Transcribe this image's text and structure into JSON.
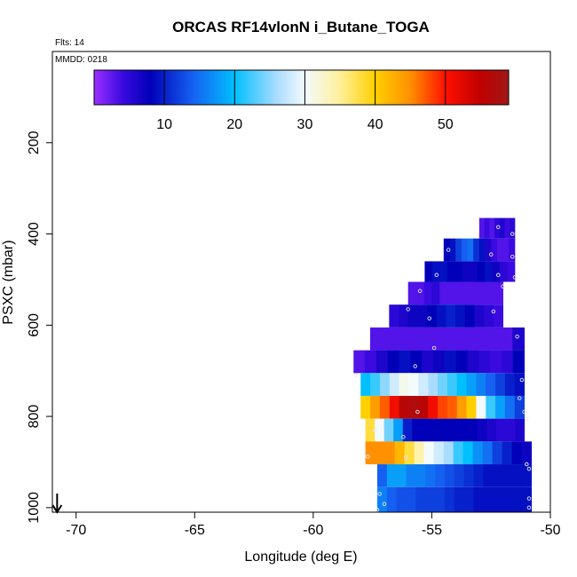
{
  "chart_data": {
    "type": "heatmap",
    "title": "ORCAS RF14vlonN i_Butane_TOGA",
    "flights_label": "Flts: 14",
    "date_label": "MMDD: 0218",
    "xlabel": "Longitude (deg E)",
    "ylabel": "PSXC (mbar)",
    "xlim": [
      -71,
      -50
    ],
    "ylim": [
      1010,
      0
    ],
    "x_ticks": [
      -70,
      -65,
      -60,
      -55,
      -50
    ],
    "y_ticks": [
      200,
      400,
      600,
      800,
      1000
    ],
    "colorbar": {
      "min": 0,
      "max": 59,
      "ticks": [
        10,
        20,
        30,
        40,
        50
      ],
      "stops": [
        {
          "v": 0,
          "c": "#9b30ff"
        },
        {
          "v": 4,
          "c": "#3a0ae0"
        },
        {
          "v": 8,
          "c": "#0000b8"
        },
        {
          "v": 14,
          "c": "#1560f0"
        },
        {
          "v": 20,
          "c": "#00bfff"
        },
        {
          "v": 26,
          "c": "#aadcff"
        },
        {
          "v": 30,
          "c": "#f3fbff"
        },
        {
          "v": 35,
          "c": "#fff09a"
        },
        {
          "v": 40,
          "c": "#ffd000"
        },
        {
          "v": 45,
          "c": "#ff9000"
        },
        {
          "v": 50,
          "c": "#ff1000"
        },
        {
          "v": 55,
          "c": "#c00000"
        },
        {
          "v": 59,
          "c": "#a01818"
        }
      ]
    },
    "rows": [
      {
        "p_top": 365,
        "p_bot": 410,
        "lon_start": -53.0,
        "lon_end": -51.5,
        "values": [
          3,
          4,
          3,
          5,
          6,
          4,
          5
        ]
      },
      {
        "p_top": 410,
        "p_bot": 460,
        "lon_start": -54.5,
        "lon_end": -51.5,
        "values": [
          8,
          9,
          12,
          14,
          15,
          11,
          9,
          6,
          4,
          3,
          3,
          4
        ]
      },
      {
        "p_top": 460,
        "p_bot": 505,
        "lon_start": -55.3,
        "lon_end": -51.5,
        "values": [
          8,
          9,
          9,
          8,
          8,
          7,
          7,
          8,
          9,
          7,
          5,
          4
        ]
      },
      {
        "p_top": 505,
        "p_bot": 555,
        "lon_start": -56.0,
        "lon_end": -52.0,
        "values": [
          3,
          3,
          4,
          5,
          3,
          3,
          3,
          3,
          3,
          3,
          3,
          3
        ]
      },
      {
        "p_top": 555,
        "p_bot": 605,
        "lon_start": -56.8,
        "lon_end": -52.0,
        "values": [
          5,
          6,
          7,
          7,
          8,
          9,
          10,
          9,
          8,
          6,
          5,
          4
        ]
      },
      {
        "p_top": 605,
        "p_bot": 655,
        "lon_start": -57.6,
        "lon_end": -51.1,
        "values": [
          3,
          3,
          3,
          3,
          3,
          3,
          3,
          3,
          3,
          3,
          3,
          3,
          6
        ]
      },
      {
        "p_top": 655,
        "p_bot": 705,
        "lon_start": -58.3,
        "lon_end": -51.1,
        "values": [
          3,
          4,
          6,
          8,
          9,
          8,
          6,
          7,
          9,
          8,
          6,
          5,
          4,
          5,
          8
        ]
      },
      {
        "p_top": 705,
        "p_bot": 755,
        "lon_start": -58.0,
        "lon_end": -51.1,
        "values": [
          20,
          22,
          25,
          28,
          31,
          30,
          28,
          26,
          24,
          22,
          20,
          18,
          16,
          14,
          12,
          10,
          9
        ]
      },
      {
        "p_top": 755,
        "p_bot": 805,
        "lon_start": -58.0,
        "lon_end": -51.1,
        "values": [
          40,
          44,
          47,
          51,
          56,
          57,
          56,
          51,
          48,
          47,
          44,
          40,
          30,
          22,
          18,
          15,
          12
        ]
      },
      {
        "p_top": 805,
        "p_bot": 855,
        "lon_start": -57.8,
        "lon_end": -51.1,
        "values": [
          38,
          30,
          24,
          18,
          10,
          8,
          8,
          8,
          8,
          8,
          8,
          8,
          7,
          6,
          5,
          5,
          6
        ]
      },
      {
        "p_top": 855,
        "p_bot": 905,
        "lon_start": -57.8,
        "lon_end": -50.8,
        "values": [
          45,
          45,
          45,
          42,
          38,
          34,
          30,
          28,
          26,
          22,
          20,
          17,
          15,
          12,
          10,
          8,
          7
        ]
      },
      {
        "p_top": 905,
        "p_bot": 955,
        "lon_start": -57.3,
        "lon_end": -50.8,
        "values": [
          14,
          18,
          18,
          16,
          16,
          15,
          14,
          13,
          12,
          11,
          10,
          9,
          9,
          9,
          9,
          9
        ]
      },
      {
        "p_top": 955,
        "p_bot": 1010,
        "lon_start": -57.3,
        "lon_end": -50.8,
        "values": [
          16,
          14,
          13,
          13,
          12,
          12,
          12,
          11,
          10,
          10,
          9,
          9,
          9,
          9,
          9,
          9
        ]
      }
    ],
    "sample_points": [
      {
        "lon": -52.2,
        "p": 385
      },
      {
        "lon": -51.6,
        "p": 400
      },
      {
        "lon": -54.3,
        "p": 435
      },
      {
        "lon": -52.5,
        "p": 445
      },
      {
        "lon": -51.6,
        "p": 450
      },
      {
        "lon": -54.8,
        "p": 490
      },
      {
        "lon": -52.2,
        "p": 490
      },
      {
        "lon": -51.5,
        "p": 495
      },
      {
        "lon": -55.5,
        "p": 525
      },
      {
        "lon": -52.0,
        "p": 515
      },
      {
        "lon": -56.0,
        "p": 565
      },
      {
        "lon": -55.1,
        "p": 585
      },
      {
        "lon": -52.4,
        "p": 570
      },
      {
        "lon": -54.9,
        "p": 650
      },
      {
        "lon": -51.4,
        "p": 625
      },
      {
        "lon": -58.2,
        "p": 710
      },
      {
        "lon": -55.7,
        "p": 690
      },
      {
        "lon": -51.2,
        "p": 720
      },
      {
        "lon": -55.2,
        "p": 745
      },
      {
        "lon": -51.3,
        "p": 760
      },
      {
        "lon": -55.6,
        "p": 790
      },
      {
        "lon": -51.1,
        "p": 790
      },
      {
        "lon": -51.0,
        "p": 805
      },
      {
        "lon": -57.4,
        "p": 830
      },
      {
        "lon": -56.2,
        "p": 845
      },
      {
        "lon": -57.7,
        "p": 888
      },
      {
        "lon": -56.1,
        "p": 890
      },
      {
        "lon": -51.0,
        "p": 905
      },
      {
        "lon": -50.9,
        "p": 915
      },
      {
        "lon": -57.2,
        "p": 970
      },
      {
        "lon": -57.0,
        "p": 992
      },
      {
        "lon": -50.9,
        "p": 980
      },
      {
        "lon": -50.9,
        "p": 1000
      },
      {
        "lon": -57.3,
        "p": 1005
      }
    ],
    "arrow_marker": {
      "lon": -70.8,
      "direction": "down"
    }
  }
}
